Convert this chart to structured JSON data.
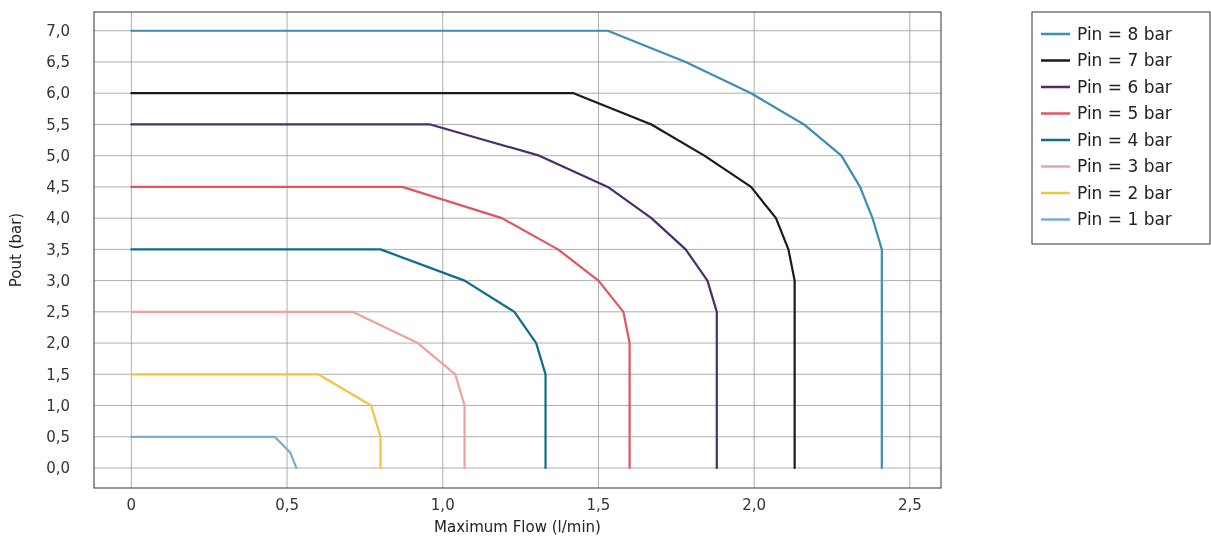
{
  "chart_data": {
    "type": "line",
    "xlabel": "Maximum Flow (l/min)",
    "ylabel": "Pout (bar)",
    "xlim": [
      -0.12,
      2.6
    ],
    "ylim": [
      -0.32,
      7.3
    ],
    "xticks": [
      0,
      {
        "value": 0.5,
        "label": "0,5"
      },
      {
        "value": 1,
        "label": "1,0"
      },
      {
        "value": 1.5,
        "label": "1,5"
      },
      {
        "value": 2,
        "label": "2,0"
      },
      {
        "value": 2.5,
        "label": "2,5"
      }
    ],
    "yticks": [
      {
        "value": 0,
        "label": "0,0"
      },
      {
        "value": 0.5,
        "label": "0,5"
      },
      {
        "value": 1,
        "label": "1,0"
      },
      {
        "value": 1.5,
        "label": "1,5"
      },
      {
        "value": 2,
        "label": "2,0"
      },
      {
        "value": 2.5,
        "label": "2,5"
      },
      {
        "value": 3,
        "label": "3,0"
      },
      {
        "value": 3.5,
        "label": "3,5"
      },
      {
        "value": 4,
        "label": "4,0"
      },
      {
        "value": 4.5,
        "label": "4,5"
      },
      {
        "value": 5,
        "label": "5,0"
      },
      {
        "value": 5.5,
        "label": "5,5"
      },
      {
        "value": 6,
        "label": "6,0"
      },
      {
        "value": 6.5,
        "label": "6,5"
      },
      {
        "value": 7,
        "label": "7,0"
      }
    ],
    "grid": true,
    "legend": "top right",
    "marker": "none",
    "line_style": "solid",
    "series": [
      {
        "name": "Pin = 8 bar",
        "color": "#3a8fb0",
        "x": [
          0,
          1.53,
          1.78,
          1.99,
          2.16,
          2.28,
          2.34,
          2.38,
          2.41,
          2.41
        ],
        "values": [
          7,
          7,
          6.5,
          6,
          5.5,
          5,
          4.5,
          4,
          3.5,
          0
        ]
      },
      {
        "name": "Pin = 7 bar",
        "color": "#1a1a1a",
        "x": [
          0,
          1.42,
          1.67,
          1.84,
          1.99,
          2.07,
          2.11,
          2.13,
          2.13
        ],
        "values": [
          6,
          6,
          5.5,
          5,
          4.5,
          4,
          3.5,
          3,
          0
        ]
      },
      {
        "name": "Pin = 6 bar",
        "color": "#4a2d6b",
        "x": [
          0,
          0.96,
          1.31,
          1.53,
          1.67,
          1.78,
          1.85,
          1.88,
          1.88
        ],
        "values": [
          5.5,
          5.5,
          5,
          4.5,
          4,
          3.5,
          3,
          2.5,
          0
        ]
      },
      {
        "name": "Pin = 5 bar",
        "color": "#e05563",
        "x": [
          0,
          0.87,
          1.19,
          1.37,
          1.5,
          1.58,
          1.6,
          1.6
        ],
        "values": [
          4.5,
          4.5,
          4,
          3.5,
          3,
          2.5,
          2,
          0
        ]
      },
      {
        "name": "Pin = 4 bar",
        "color": "#0e6c8c",
        "x": [
          0,
          0.8,
          1.07,
          1.23,
          1.3,
          1.33,
          1.33
        ],
        "values": [
          3.5,
          3.5,
          3,
          2.5,
          2,
          1.5,
          0
        ]
      },
      {
        "name": "Pin = 3 bar",
        "color": "#f0a0a0",
        "x": [
          0,
          0.71,
          0.92,
          1.04,
          1.07,
          1.07
        ],
        "values": [
          2.5,
          2.5,
          2,
          1.5,
          1,
          0
        ]
      },
      {
        "name": "Pin = 2 bar",
        "color": "#f5c342",
        "x": [
          0,
          0.6,
          0.77,
          0.8,
          0.8
        ],
        "values": [
          1.5,
          1.5,
          1,
          0.5,
          0
        ]
      },
      {
        "name": "Pin = 1 bar",
        "color": "#7aaed0",
        "x": [
          0,
          0.46,
          0.51,
          0.53
        ],
        "values": [
          0.5,
          0.5,
          0.25,
          0
        ]
      }
    ]
  }
}
